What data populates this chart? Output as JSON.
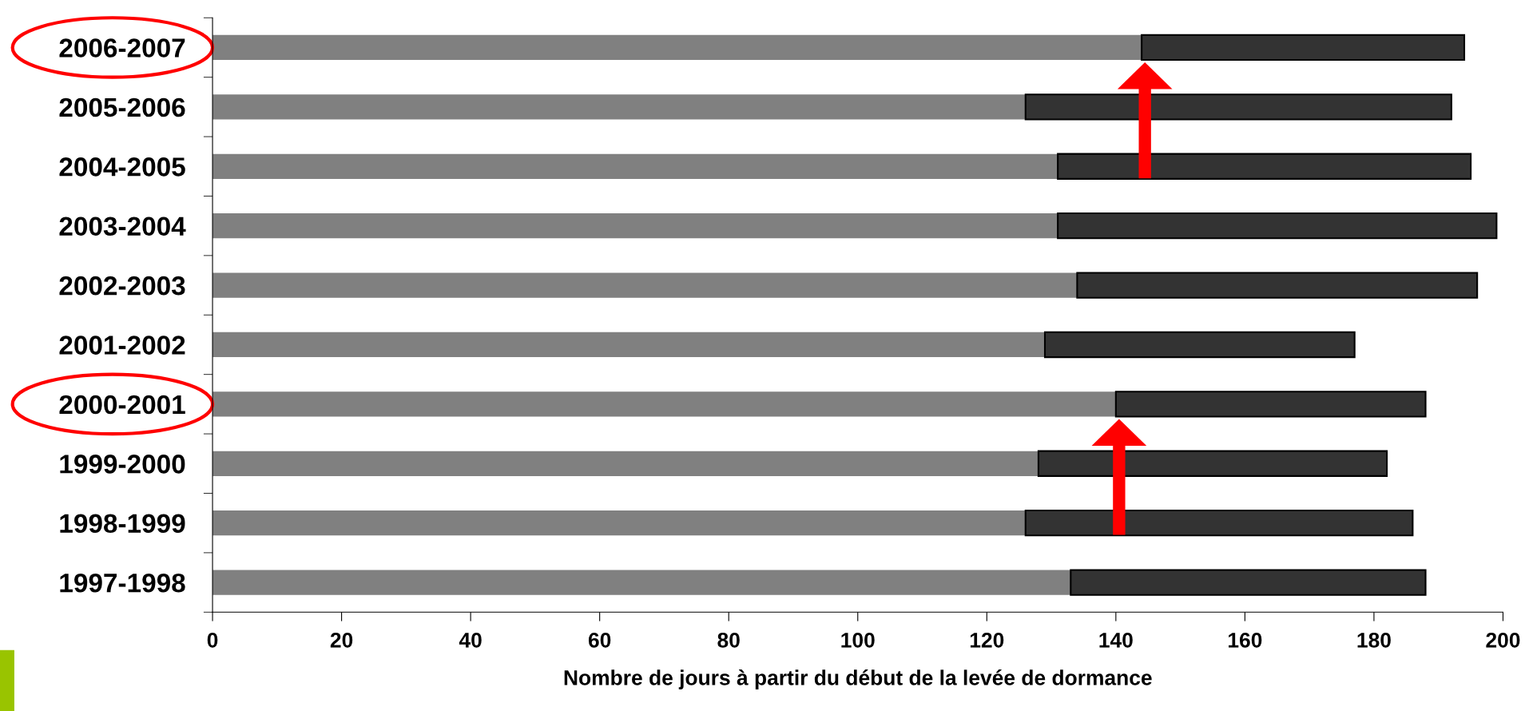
{
  "chart_data": {
    "type": "bar",
    "orientation": "horizontal",
    "stacked": true,
    "xlabel": "Nombre de jours à partir du début de la levée de dormance",
    "categories": [
      "2006-2007",
      "2005-2006",
      "2004-2005",
      "2003-2004",
      "2002-2003",
      "2001-2002",
      "2000-2001",
      "1999-2000",
      "1998-1999",
      "1997-1998"
    ],
    "series": [
      {
        "color": "#808080",
        "values": [
          144,
          126,
          131,
          131,
          134,
          129,
          140,
          128,
          126,
          133
        ]
      },
      {
        "color": "#333333",
        "values": [
          50,
          66,
          64,
          68,
          62,
          48,
          48,
          54,
          60,
          55
        ]
      }
    ],
    "xlim": [
      0,
      200
    ],
    "xticks": [
      0,
      20,
      40,
      60,
      80,
      100,
      120,
      140,
      160,
      180,
      200
    ],
    "grid": false,
    "legend": false
  }
}
